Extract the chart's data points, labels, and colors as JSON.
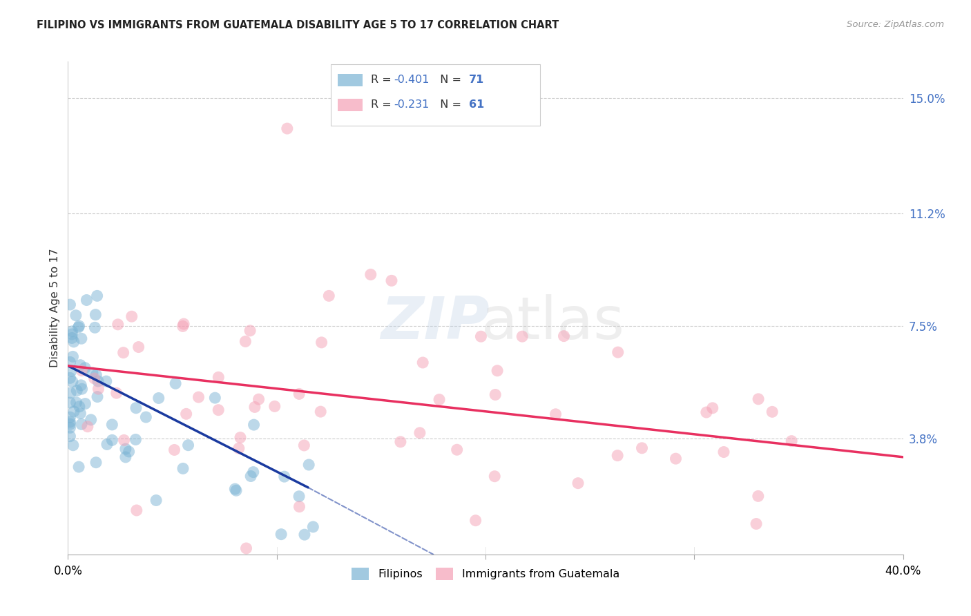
{
  "title": "FILIPINO VS IMMIGRANTS FROM GUATEMALA DISABILITY AGE 5 TO 17 CORRELATION CHART",
  "source": "Source: ZipAtlas.com",
  "ylabel": "Disability Age 5 to 17",
  "xlim": [
    0.0,
    0.4
  ],
  "ylim": [
    0.0,
    0.162
  ],
  "xtick_vals": [
    0.0,
    0.1,
    0.2,
    0.3,
    0.4
  ],
  "xticklabels_show": [
    "0.0%",
    "",
    "",
    "",
    "40.0%"
  ],
  "yticks_right": [
    0.038,
    0.075,
    0.112,
    0.15
  ],
  "ytickslabels_right": [
    "3.8%",
    "7.5%",
    "11.2%",
    "15.0%"
  ],
  "filipinos_R": -0.401,
  "filipinos_N": 71,
  "guatemala_R": -0.231,
  "guatemala_N": 61,
  "filipinos_color": "#7ab3d4",
  "guatemala_color": "#f4a0b5",
  "filipinos_line_color": "#1a3a9f",
  "guatemala_line_color": "#e83060",
  "fil_line_start_x": 0.0,
  "fil_line_start_y": 0.062,
  "fil_line_solid_end_x": 0.115,
  "fil_line_solid_end_y": 0.022,
  "fil_line_dash_end_x": 0.175,
  "fil_line_dash_end_y": 0.0,
  "gua_line_start_x": 0.0,
  "gua_line_start_y": 0.062,
  "gua_line_end_x": 0.4,
  "gua_line_end_y": 0.032
}
